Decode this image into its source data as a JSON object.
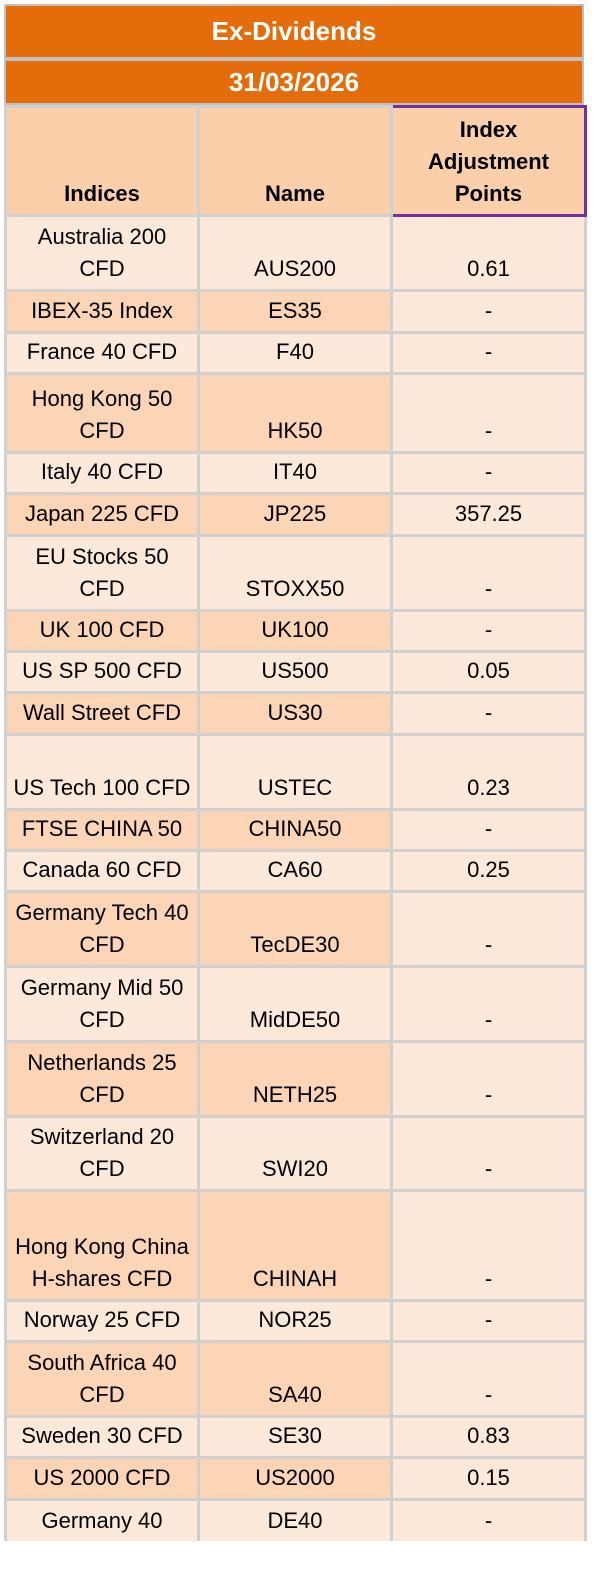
{
  "title": "Ex-Dividends",
  "date": "31/03/2026",
  "columns": [
    "Indices",
    "Name",
    "Index Adjustment Points"
  ],
  "rows": [
    {
      "index": "Australia 200 CFD",
      "name": "AUS200",
      "points": "0.61"
    },
    {
      "index": "IBEX-35 Index",
      "name": "ES35",
      "points": "-"
    },
    {
      "index": "France 40 CFD",
      "name": "F40",
      "points": "-"
    },
    {
      "index": "Hong Kong 50 CFD",
      "name": "HK50",
      "points": "-"
    },
    {
      "index": "Italy 40 CFD",
      "name": "IT40",
      "points": "-"
    },
    {
      "index": "Japan 225 CFD",
      "name": "JP225",
      "points": "357.25"
    },
    {
      "index": "EU Stocks 50 CFD",
      "name": "STOXX50",
      "points": "-"
    },
    {
      "index": "UK 100 CFD",
      "name": "UK100",
      "points": "-"
    },
    {
      "index": "US SP 500 CFD",
      "name": "US500",
      "points": "0.05"
    },
    {
      "index": "Wall Street CFD",
      "name": "US30",
      "points": "-"
    },
    {
      "index": "US Tech 100 CFD",
      "name": "USTEC",
      "points": "0.23"
    },
    {
      "index": "FTSE CHINA 50",
      "name": "CHINA50",
      "points": "-"
    },
    {
      "index": "Canada 60 CFD",
      "name": "CA60",
      "points": "0.25"
    },
    {
      "index": "Germany Tech 40 CFD",
      "name": "TecDE30",
      "points": "-"
    },
    {
      "index": "Germany Mid 50 CFD",
      "name": "MidDE50",
      "points": "-"
    },
    {
      "index": "Netherlands 25 CFD",
      "name": "NETH25",
      "points": "-"
    },
    {
      "index": "Switzerland 20 CFD",
      "name": "SWI20",
      "points": "-"
    },
    {
      "index": "Hong Kong China H-shares CFD",
      "name": "CHINAH",
      "points": "-"
    },
    {
      "index": "Norway 25 CFD",
      "name": "NOR25",
      "points": "-"
    },
    {
      "index": "South Africa 40 CFD",
      "name": "SA40",
      "points": "-"
    },
    {
      "index": "Sweden 30 CFD",
      "name": "SE30",
      "points": "0.83"
    },
    {
      "index": "US 2000 CFD",
      "name": "US2000",
      "points": "0.15"
    },
    {
      "index": "Germany 40",
      "name": "DE40",
      "points": "-"
    }
  ],
  "colors": {
    "banner": "#e46c0a",
    "header_fill": "#fbcfa9",
    "row_fill": "#fde9d9",
    "row_alt_fill": "#fbd5b5",
    "highlight_border": "#7030a0"
  }
}
